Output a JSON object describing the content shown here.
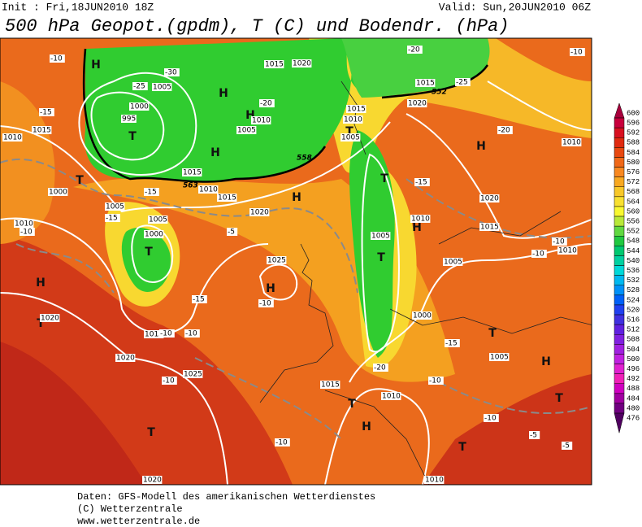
{
  "header": {
    "init": "Init : Fri,18JUN2010 18Z",
    "valid": "Valid: Sun,20JUN2010 06Z",
    "title": "500 hPa Geopot.(gpdm), T (C) und Bodendr. (hPa)"
  },
  "legend": [
    "600",
    "596",
    "592",
    "588",
    "584",
    "580",
    "576",
    "572",
    "568",
    "564",
    "560",
    "556",
    "552",
    "548",
    "544",
    "540",
    "536",
    "532",
    "528",
    "524",
    "520",
    "516",
    "512",
    "508",
    "504",
    "500",
    "496",
    "492",
    "488",
    "484",
    "480",
    "476"
  ],
  "map": {
    "centers": [
      "H",
      "H",
      "H",
      "T",
      "H",
      "T",
      "T",
      "T",
      "H",
      "H",
      "T",
      "T",
      "H",
      "T",
      "H",
      "T",
      "H",
      "T",
      "T",
      "H",
      "T",
      "H",
      "T"
    ],
    "isolines": [
      "1015",
      "1020",
      "1005",
      "1000",
      "995",
      "1015",
      "1010",
      "1000",
      "1005",
      "1005",
      "1010",
      "1000",
      "1020",
      "1015",
      "1020",
      "1025",
      "1025",
      "1015",
      "1010",
      "1015",
      "1020",
      "1015",
      "1010",
      "1005",
      "1010",
      "1005",
      "1020",
      "1015",
      "1010",
      "1015",
      "1020",
      "1005",
      "1005",
      "1000",
      "1005",
      "1015",
      "1010",
      "1010",
      "1020",
      "1010",
      "1010"
    ],
    "temperatures": [
      "-30",
      "-25",
      "-20",
      "-15",
      "-10",
      "-20",
      "-25",
      "-20",
      "-10",
      "-15",
      "-15",
      "-10",
      "-5",
      "-10",
      "-15",
      "-10",
      "-10",
      "-10",
      "-10",
      "-5",
      "-10",
      "-10",
      "-15",
      "-20",
      "-15",
      "-10",
      "-10",
      "-5"
    ],
    "heights": [
      "552",
      "558",
      "563"
    ]
  },
  "footer": [
    "Daten: GFS-Modell des amerikanischen Wetterdienstes",
    "(C) Wetterzentrale",
    "www.wetterzentrale.de"
  ]
}
